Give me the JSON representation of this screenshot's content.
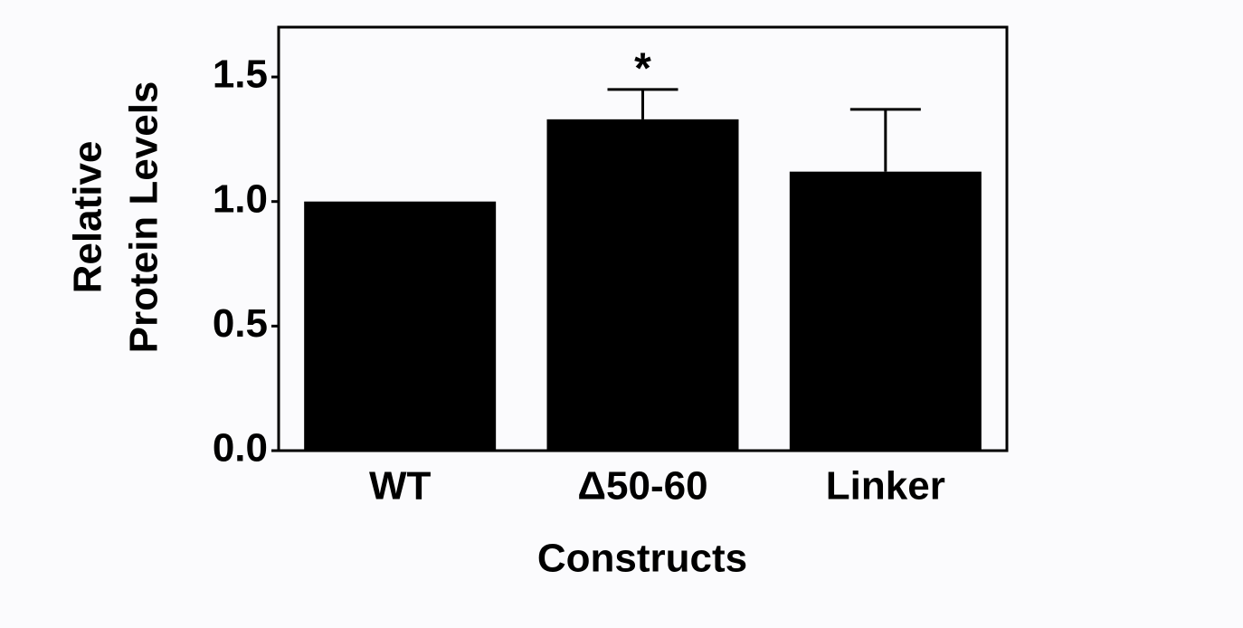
{
  "chart_data": {
    "type": "bar",
    "ylabel": [
      "Relative",
      "Protein Levels"
    ],
    "xlabel": "Constructs",
    "categories": [
      "WT",
      "Δ50-60",
      "Linker"
    ],
    "values": [
      1.0,
      1.33,
      1.12
    ],
    "errors": [
      0,
      0.12,
      0.25
    ],
    "significance_labels": [
      null,
      "*",
      null
    ],
    "color": "#000000",
    "ylim": [
      0,
      1.7
    ],
    "yticks": [
      {
        "value": 0,
        "label": "0.0"
      },
      0.5,
      {
        "value": 1,
        "label": "1.0"
      },
      1.5
    ]
  }
}
